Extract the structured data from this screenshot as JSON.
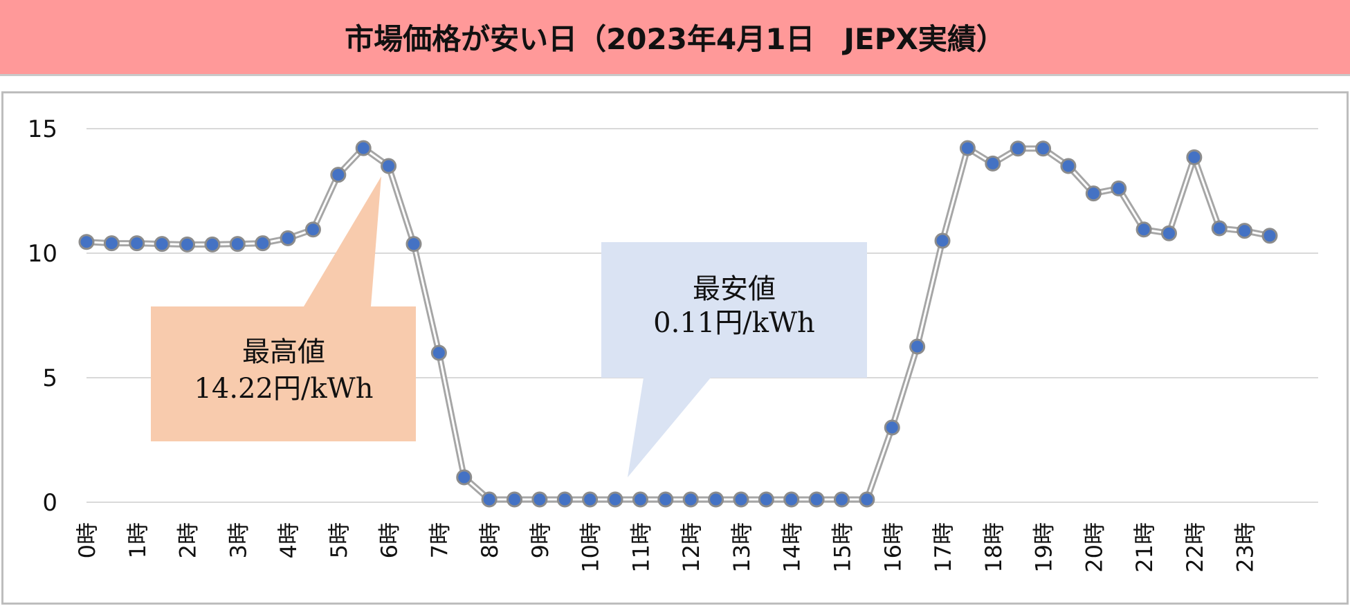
{
  "title": "市場価格が安い日（2023年4月1日　JEPX実績）",
  "chart_data": {
    "type": "line",
    "y_ticks": [
      "0",
      "5",
      "10",
      "15"
    ],
    "ylim": [
      0,
      15
    ],
    "grid": true,
    "x_tick_labels": [
      "0時",
      "1時",
      "2時",
      "3時",
      "4時",
      "5時",
      "6時",
      "7時",
      "8時",
      "9時",
      "10時",
      "11時",
      "12時",
      "13時",
      "14時",
      "15時",
      "16時",
      "17時",
      "18時",
      "19時",
      "20時",
      "21時",
      "22時",
      "23時"
    ],
    "values": [
      10.45,
      10.4,
      10.4,
      10.37,
      10.35,
      10.35,
      10.37,
      10.4,
      10.6,
      10.95,
      13.15,
      14.22,
      13.5,
      10.37,
      6.0,
      1.0,
      0.11,
      0.11,
      0.11,
      0.11,
      0.11,
      0.11,
      0.11,
      0.11,
      0.11,
      0.11,
      0.11,
      0.11,
      0.11,
      0.11,
      0.11,
      0.11,
      3.0,
      6.25,
      10.5,
      14.22,
      13.6,
      14.2,
      14.2,
      13.5,
      12.4,
      12.6,
      10.95,
      10.8,
      13.85,
      11.0,
      10.9,
      10.7
    ],
    "line_color": "#a6a6a6",
    "marker_color": "#4472c4"
  },
  "annotations": {
    "max": {
      "line1": "最高値",
      "line2": "14.22円/kWh",
      "color": "#f8cbad"
    },
    "min": {
      "line1": "最安値",
      "line2": "0.11円/kWh",
      "color": "#dae3f3"
    }
  }
}
